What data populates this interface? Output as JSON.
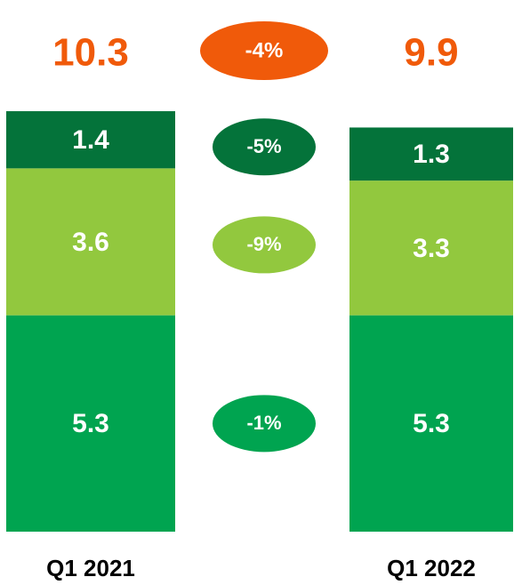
{
  "chart_data": {
    "type": "bar",
    "stacked": true,
    "categories": [
      "Q1 2021",
      "Q1 2022"
    ],
    "ylim": [
      0,
      12
    ],
    "series": [
      {
        "color": "#00a450",
        "values": [
          5.3,
          5.3
        ],
        "change": {
          "value": -1,
          "label": "-1%"
        }
      },
      {
        "color": "#92c83e",
        "values": [
          3.6,
          3.3
        ],
        "change": {
          "value": -9,
          "label": "-9%"
        }
      },
      {
        "color": "#04733a",
        "values": [
          1.4,
          1.3
        ],
        "change": {
          "value": -5,
          "label": "-5%"
        }
      }
    ],
    "total": {
      "color": "#f05a0a",
      "values": [
        10.3,
        9.9
      ],
      "change": {
        "value": -4,
        "label": "-4%"
      }
    }
  }
}
